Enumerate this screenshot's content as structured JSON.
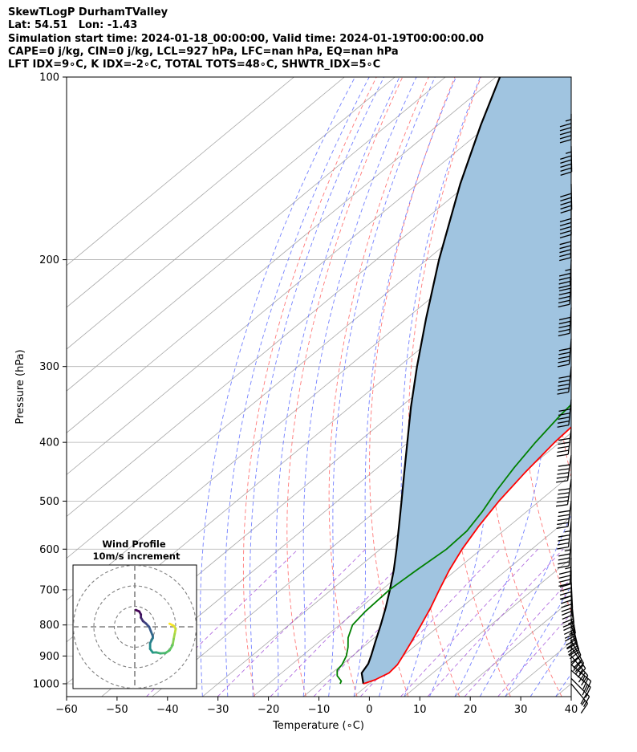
{
  "header": {
    "title": "SkewTLogP DurhamTValley",
    "location": "Lat: 54.51   Lon: -1.43",
    "times": "Simulation start time: 2024-01-18_00:00:00, Valid time: 2024-01-19T00:00:00.00",
    "indices_1": "CAPE=0 j/kg, CIN=0 j/kg, LCL=927 hPa, LFC=nan hPa, EQ=nan hPa",
    "indices_2": "LFT IDX=9∘C, K IDX=-2∘C, TOTAL TOTS=48∘C, SHWTR_IDX=5∘C"
  },
  "colors": {
    "temperature": "#ff0000",
    "dewpoint": "#008000",
    "parcel": "#000000",
    "cape_fill": "#a0c4e0",
    "dry_adiabat": "#ff6060",
    "moist_adiabat": "#5a6aff",
    "mixing_ratio": "#9a3fd6",
    "isotherm": "#a8a8a8"
  },
  "chart_data": {
    "type": "line",
    "xlabel": "Temperature (∘C)",
    "ylabel": "Pressure (hPa)",
    "xlim": [
      -60,
      40
    ],
    "ylim": [
      1050,
      100
    ],
    "y_scale": "log",
    "grid": true,
    "x_ticks": [
      -60,
      -50,
      -40,
      -30,
      -20,
      -10,
      0,
      10,
      20,
      30,
      40
    ],
    "x_tick_labels": [
      "−60",
      "−50",
      "−40",
      "−30",
      "−20",
      "−10",
      "0",
      "10",
      "20",
      "30",
      "40"
    ],
    "y_ticks": [
      1000,
      900,
      800,
      700,
      600,
      500,
      400,
      300,
      200,
      100
    ],
    "y_tick_labels": [
      "1000",
      "900",
      "800",
      "700",
      "600",
      "500",
      "400",
      "300",
      "200",
      "100"
    ],
    "series": [
      {
        "key": "temperature",
        "points": [
          [
            1000,
            -1.2
          ],
          [
            985,
            0.2
          ],
          [
            960,
            1.3
          ],
          [
            930,
            1.0
          ],
          [
            900,
            0.0
          ],
          [
            850,
            -1.8
          ],
          [
            800,
            -3.8
          ],
          [
            750,
            -6.0
          ],
          [
            700,
            -8.6
          ],
          [
            650,
            -11.3
          ],
          [
            600,
            -13.8
          ],
          [
            550,
            -16.0
          ],
          [
            500,
            -18.0
          ],
          [
            450,
            -19.6
          ],
          [
            400,
            -21.0
          ],
          [
            350,
            -21.8
          ],
          [
            320,
            -21.8
          ],
          [
            300,
            -21.2
          ],
          [
            280,
            -20.0
          ],
          [
            260,
            -17.8
          ],
          [
            240,
            -15.4
          ],
          [
            220,
            -13.6
          ],
          [
            200,
            -11.5
          ],
          [
            180,
            -8.5
          ],
          [
            165,
            -6.0
          ],
          [
            150,
            -4.5
          ],
          [
            135,
            -3.6
          ],
          [
            125,
            -2.8
          ],
          [
            115,
            -0.8
          ],
          [
            100,
            2.6
          ]
        ]
      },
      {
        "key": "dewpoint",
        "points": [
          [
            1000,
            -5.8
          ],
          [
            990,
            -6.2
          ],
          [
            970,
            -8.3
          ],
          [
            950,
            -9.6
          ],
          [
            930,
            -10.0
          ],
          [
            900,
            -11.2
          ],
          [
            870,
            -13.0
          ],
          [
            840,
            -15.2
          ],
          [
            800,
            -17.4
          ],
          [
            760,
            -18.1
          ],
          [
            700,
            -18.5
          ],
          [
            650,
            -17.8
          ],
          [
            600,
            -16.9
          ],
          [
            560,
            -17.2
          ],
          [
            520,
            -18.8
          ],
          [
            480,
            -21.0
          ],
          [
            440,
            -23.0
          ],
          [
            400,
            -24.8
          ],
          [
            360,
            -26.4
          ],
          [
            330,
            -27.2
          ],
          [
            300,
            -27.0
          ],
          [
            270,
            -26.4
          ],
          [
            250,
            -25.7
          ],
          [
            230,
            -25.5
          ],
          [
            200,
            -25.5
          ],
          [
            180,
            -25.6
          ],
          [
            170,
            -25.0
          ],
          [
            160,
            -23.5
          ],
          [
            145,
            -20.8
          ],
          [
            130,
            -18.1
          ],
          [
            115,
            -15.3
          ],
          [
            100,
            -13.5
          ]
        ]
      },
      {
        "key": "parcel",
        "points": [
          [
            1000,
            -1.2
          ],
          [
            960,
            -4.1
          ],
          [
            927,
            -5.0
          ],
          [
            900,
            -6.3
          ],
          [
            850,
            -9.0
          ],
          [
            800,
            -11.8
          ],
          [
            750,
            -14.9
          ],
          [
            700,
            -18.4
          ],
          [
            650,
            -22.3
          ],
          [
            600,
            -26.8
          ],
          [
            550,
            -31.8
          ],
          [
            500,
            -37.3
          ],
          [
            450,
            -43.4
          ],
          [
            400,
            -50.2
          ],
          [
            350,
            -57.9
          ],
          [
            300,
            -66.4
          ],
          [
            250,
            -76.1
          ],
          [
            200,
            -87.6
          ],
          [
            150,
            -101.5
          ],
          [
            120,
            -111.5
          ],
          [
            100,
            -119.2
          ]
        ]
      }
    ],
    "wind_barbs": {
      "note_units": "knots",
      "levels": [
        [
          1000,
          -10,
          12
        ],
        [
          980,
          -14,
          14
        ],
        [
          950,
          -16,
          14
        ],
        [
          930,
          -18,
          15
        ],
        [
          900,
          -17,
          20
        ],
        [
          870,
          -16,
          24
        ],
        [
          850,
          -15,
          27
        ],
        [
          820,
          -12,
          30
        ],
        [
          800,
          -10,
          32
        ],
        [
          780,
          -8,
          34
        ],
        [
          750,
          -6,
          36
        ],
        [
          720,
          -4,
          38
        ],
        [
          680,
          -2,
          40
        ],
        [
          650,
          0,
          42
        ],
        [
          620,
          2,
          44
        ],
        [
          580,
          4,
          46
        ],
        [
          540,
          5,
          47
        ],
        [
          500,
          6,
          48
        ],
        [
          460,
          7,
          49
        ],
        [
          420,
          7,
          50
        ],
        [
          380,
          6,
          51
        ],
        [
          340,
          5,
          52
        ],
        [
          300,
          5,
          50
        ],
        [
          270,
          4,
          50
        ],
        [
          240,
          3,
          50
        ],
        [
          215,
          3,
          48
        ],
        [
          200,
          2,
          46
        ],
        [
          180,
          1,
          48
        ],
        [
          165,
          0,
          50
        ],
        [
          150,
          -1,
          52
        ],
        [
          130,
          -1,
          54
        ],
        [
          115,
          0,
          56
        ]
      ]
    },
    "hodograph": {
      "title": "Wind Profile",
      "subtitle": "10m/s increment",
      "rings_ms": [
        10,
        20,
        30
      ],
      "u_v_ms": [
        [
          17,
          1.5
        ],
        [
          19,
          0.5
        ],
        [
          20,
          -1.0
        ],
        [
          19.5,
          -3.5
        ],
        [
          19,
          -6.0
        ],
        [
          18.5,
          -9.0
        ],
        [
          17.0,
          -11.5
        ],
        [
          15,
          -12.8
        ],
        [
          12.5,
          -13.0
        ],
        [
          10.5,
          -12.5
        ],
        [
          8.8,
          -12.6
        ],
        [
          7.5,
          -10.8
        ],
        [
          7.5,
          -8.0
        ],
        [
          8.8,
          -5.5
        ],
        [
          8.8,
          -4.5
        ],
        [
          7.8,
          -2.0
        ],
        [
          7.0,
          0.0
        ],
        [
          5.5,
          1.6
        ],
        [
          4.0,
          2.8
        ],
        [
          3.0,
          4.5
        ],
        [
          3.0,
          6.0
        ],
        [
          2.2,
          7.5
        ],
        [
          0.5,
          8.2
        ]
      ]
    }
  }
}
